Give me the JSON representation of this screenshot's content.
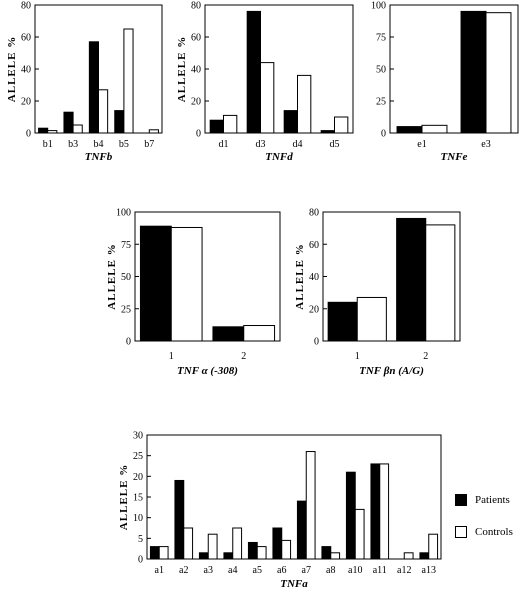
{
  "colors": {
    "patients": "#000000",
    "controls": "#ffffff",
    "stroke": "#000000"
  },
  "legend": {
    "patients": "Patients",
    "controls": "Controls"
  },
  "chart_data": [
    {
      "id": "tnfb",
      "type": "bar",
      "xlabel": "TNFb",
      "ylabel": "ALLELE %",
      "ylim": [
        0,
        80
      ],
      "yticks": [
        0,
        20,
        40,
        60,
        80
      ],
      "categories": [
        "b1",
        "b3",
        "b4",
        "b5",
        "b7"
      ],
      "series": [
        {
          "name": "Patients",
          "values": [
            3,
            13,
            57,
            14,
            0
          ]
        },
        {
          "name": "Controls",
          "values": [
            1.5,
            5,
            27,
            65,
            2
          ]
        }
      ]
    },
    {
      "id": "tnfd",
      "type": "bar",
      "xlabel": "TNFd",
      "ylabel": "ALLELE %",
      "ylim": [
        0,
        80
      ],
      "yticks": [
        0,
        20,
        40,
        60,
        80
      ],
      "categories": [
        "d1",
        "d3",
        "d4",
        "d5"
      ],
      "series": [
        {
          "name": "Patients",
          "values": [
            8,
            76,
            14,
            1.5
          ]
        },
        {
          "name": "Controls",
          "values": [
            11,
            44,
            36,
            10
          ]
        }
      ]
    },
    {
      "id": "tnfe",
      "type": "bar",
      "xlabel": "TNFe",
      "ylabel": "",
      "ylim": [
        0,
        100
      ],
      "yticks": [
        0,
        25,
        50,
        75,
        100
      ],
      "categories": [
        "e1",
        "e3"
      ],
      "series": [
        {
          "name": "Patients",
          "values": [
            5,
            95
          ]
        },
        {
          "name": "Controls",
          "values": [
            6,
            94
          ]
        }
      ]
    },
    {
      "id": "tnfalpha",
      "type": "bar",
      "xlabel": "TNF α (-308)",
      "ylabel": "ALLELE %",
      "ylim": [
        0,
        100
      ],
      "yticks": [
        0,
        25,
        50,
        75,
        100
      ],
      "categories": [
        "1",
        "2"
      ],
      "series": [
        {
          "name": "Patients",
          "values": [
            89,
            11
          ]
        },
        {
          "name": "Controls",
          "values": [
            88,
            12
          ]
        }
      ]
    },
    {
      "id": "tnfbeta",
      "type": "bar",
      "xlabel": "TNF βn (A/G)",
      "ylabel": "ALLELE %",
      "ylim": [
        0,
        80
      ],
      "yticks": [
        0,
        20,
        40,
        60,
        80
      ],
      "categories": [
        "1",
        "2"
      ],
      "series": [
        {
          "name": "Patients",
          "values": [
            24,
            76
          ]
        },
        {
          "name": "Controls",
          "values": [
            27,
            72
          ]
        }
      ]
    },
    {
      "id": "tnfa",
      "type": "bar",
      "xlabel": "TNFa",
      "ylabel": "ALLELE %",
      "ylim": [
        0,
        30
      ],
      "yticks": [
        0,
        5,
        10,
        15,
        20,
        25,
        30
      ],
      "categories": [
        "a1",
        "a2",
        "a3",
        "a4",
        "a5",
        "a6",
        "a7",
        "a8",
        "a10",
        "a11",
        "a12",
        "a13"
      ],
      "series": [
        {
          "name": "Patients",
          "values": [
            3,
            19,
            1.5,
            1.5,
            4,
            7.5,
            14,
            3,
            21,
            23,
            0,
            1.5
          ]
        },
        {
          "name": "Controls",
          "values": [
            3,
            7.5,
            6,
            7.5,
            3,
            4.5,
            26,
            1.5,
            12,
            23,
            1.5,
            6
          ]
        }
      ]
    }
  ]
}
